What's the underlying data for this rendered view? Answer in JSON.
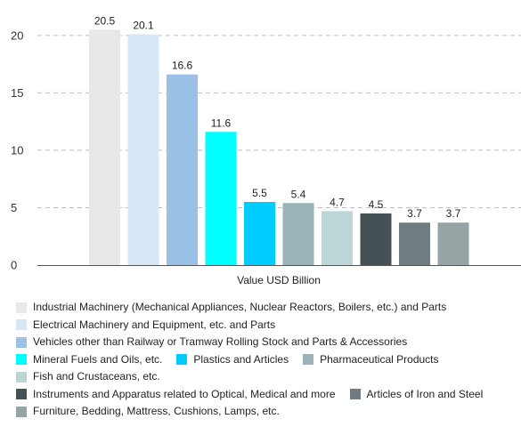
{
  "chart_data": {
    "type": "bar",
    "title": "",
    "xlabel": "Value USD Billion",
    "ylabel": "",
    "ylim": [
      0,
      22
    ],
    "yticks": [
      0,
      5,
      10,
      15,
      20
    ],
    "grid": "horizontal dashed",
    "legend_position": "bottom",
    "categories": [
      "Industrial Machinery (Mechanical Appliances, Nuclear Reactors, Boilers, etc.) and Parts",
      "Electrical Machinery and Equipment, etc. and Parts",
      "Vehicles other than Railway or Tramway Rolling Stock and Parts & Accessories",
      "Mineral Fuels and Oils, etc.",
      "Plastics and Articles",
      "Pharmaceutical Products",
      "Fish and Crustaceans, etc.",
      "Instruments and Apparatus related to Optical, Medical and more",
      "Articles of Iron and Steel",
      "Furniture, Bedding, Mattress, Cushions, Lamps, etc."
    ],
    "values": [
      20.5,
      20.1,
      16.6,
      11.6,
      5.5,
      5.4,
      4.7,
      4.5,
      3.7,
      3.7
    ],
    "data_labels": [
      "20.5",
      "20.1",
      "16.6",
      "11.6",
      "5.5",
      "5.4",
      "4.7",
      "4.5",
      "3.7",
      "3.7"
    ],
    "colors": [
      "#e8e8e8",
      "#d7e7f8",
      "#9bc2e6",
      "#00ffff",
      "#00ccff",
      "#99b3b6",
      "#bcd6d8",
      "#465156",
      "#6f7d80",
      "#97a4a6"
    ]
  },
  "legend_rows": [
    [
      0
    ],
    [
      1
    ],
    [
      2
    ],
    [
      3,
      4,
      5
    ],
    [
      6
    ],
    [
      7,
      8
    ],
    [
      9
    ]
  ]
}
